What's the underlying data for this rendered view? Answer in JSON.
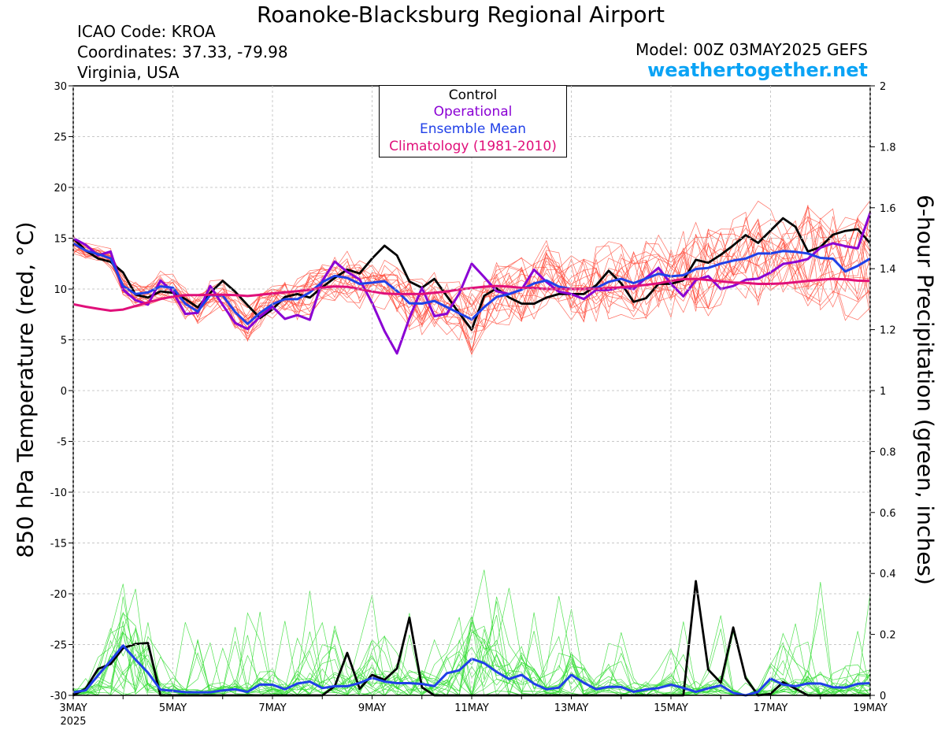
{
  "header": {
    "title": "Roanoke-Blacksburg Regional Airport",
    "icao": "ICAO Code: KROA",
    "coordinates": "Coordinates: 37.33, -79.98",
    "region": "Virginia, USA",
    "model": "Model: 00Z 03MAY2025 GEFS",
    "site": "weathertogether.net"
  },
  "legend": {
    "control": "Control",
    "operational": "Operational",
    "mean": "Ensemble Mean",
    "climatology": "Climatology (1981-2010)"
  },
  "colors": {
    "control": "#000000",
    "operational": "#8a00d4",
    "mean": "#2040e8",
    "climatology": "#e0107a",
    "members_temp": "#ff4a3a",
    "members_precip": "#33dd33",
    "site": "#0aa3f5"
  },
  "chart_data": {
    "type": "line",
    "title": "Roanoke-Blacksburg Regional Airport",
    "ylabel": "850 hPa Temperature (red, °C)",
    "y2label": "6-hour Precipitation (green, inches)",
    "xlim": [
      "2025-05-03",
      "2025-05-19"
    ],
    "ylim": [
      -30,
      30
    ],
    "y2lim": [
      0,
      2
    ],
    "x_ticks": [
      {
        "day": 3,
        "label": "3MAY",
        "sub": "2025"
      },
      {
        "day": 5,
        "label": "5MAY",
        "sub": ""
      },
      {
        "day": 7,
        "label": "7MAY",
        "sub": ""
      },
      {
        "day": 9,
        "label": "9MAY",
        "sub": ""
      },
      {
        "day": 11,
        "label": "11MAY",
        "sub": ""
      },
      {
        "day": 13,
        "label": "13MAY",
        "sub": ""
      },
      {
        "day": 15,
        "label": "15MAY",
        "sub": ""
      },
      {
        "day": 17,
        "label": "17MAY",
        "sub": ""
      },
      {
        "day": 19,
        "label": "19MAY",
        "sub": ""
      }
    ],
    "y_ticks": [
      30,
      25,
      20,
      15,
      10,
      5,
      0,
      -5,
      -10,
      -15,
      -20,
      -25,
      -30
    ],
    "y2_ticks": [
      2,
      1.8,
      1.6,
      1.4,
      1.2,
      1,
      0.8,
      0.6,
      0.4,
      0.2,
      0
    ],
    "x_step_hours": 6,
    "series": [
      {
        "name": "Control",
        "axis": "temp",
        "values": [
          15,
          14,
          13,
          13,
          12.5,
          11.5,
          9.5,
          9,
          9.5,
          10,
          9.5,
          9,
          8,
          9,
          10.5,
          11,
          9.5,
          8.5,
          7,
          7.5,
          8.5,
          9.5,
          9.5,
          9,
          10,
          10.5,
          11.5,
          12,
          11.5,
          12.5,
          14.5,
          14,
          13,
          10.5,
          10,
          11,
          11,
          8,
          7.5,
          6,
          9,
          10.5,
          9.5,
          9,
          8.5,
          8.5,
          9,
          9.5,
          9.5,
          9.5,
          9.5,
          10,
          12,
          11.5,
          10,
          8.5,
          9,
          10.5,
          10.5,
          10.5,
          11,
          13,
          12.5,
          13,
          14,
          14.5,
          15.5,
          14.5,
          15.5,
          16.5,
          17.5,
          15.5,
          13.5,
          14,
          15,
          16,
          15.5,
          16,
          14.5
        ]
      },
      {
        "name": "Operational",
        "axis": "temp",
        "values": [
          15,
          15,
          12,
          15,
          13,
          9.5,
          9,
          8,
          9.5,
          12,
          9,
          7.5,
          7,
          10.5,
          10,
          7.5,
          6.5,
          6,
          7,
          8,
          8.5,
          6.5,
          7.5,
          6.5,
          9.5,
          13,
          12.5,
          11.5,
          11,
          9,
          7.5,
          4,
          3.5,
          7.5,
          10.5,
          7.5,
          7,
          8,
          10,
          12.5,
          11.5,
          10,
          9.5,
          9.5,
          10,
          12,
          11,
          10,
          9.5,
          9.5,
          9,
          10,
          9.5,
          10.5,
          10,
          10,
          11,
          12.5,
          11,
          10,
          9,
          11,
          11.5,
          10,
          10,
          10.5,
          11,
          11,
          11.5,
          12,
          13,
          12.5,
          13,
          14,
          14.5,
          14.5,
          14,
          14,
          17.5
        ]
      },
      {
        "name": "Ensemble Mean",
        "axis": "temp",
        "values": [
          14.5,
          14,
          13,
          14,
          12.5,
          10,
          9.5,
          9.5,
          10,
          10.5,
          10,
          8.5,
          7.5,
          9,
          10,
          9,
          7.5,
          6.5,
          7.5,
          8,
          9,
          9,
          9,
          9.5,
          10.5,
          11,
          11.5,
          11,
          10.5,
          10.5,
          11,
          10.5,
          9.5,
          8.5,
          8.5,
          9,
          8.5,
          8,
          7.5,
          7,
          8,
          9,
          9.5,
          9.5,
          10,
          10.5,
          11,
          10.5,
          10,
          10,
          10,
          10,
          10.5,
          11,
          11,
          10.5,
          11,
          11.5,
          11.5,
          11,
          11.5,
          12,
          12,
          12.5,
          12.5,
          13,
          13,
          13.5,
          13.5,
          13.5,
          14,
          13.5,
          13.5,
          13,
          13.5,
          12,
          11.5,
          12.5,
          13
        ]
      },
      {
        "name": "Climatology (1981-2010)",
        "axis": "temp",
        "smooth": true,
        "values": [
          8.5,
          8.3,
          8.1,
          8,
          7.8,
          8,
          8.3,
          8.6,
          8.9,
          9.1,
          9.3,
          9.4,
          9.4,
          9.4,
          9.5,
          9.4,
          9.4,
          9.3,
          9.4,
          9.5,
          9.6,
          9.7,
          9.8,
          9.9,
          10.1,
          10.2,
          10.3,
          10.2,
          10.0,
          9.8,
          9.6,
          9.5,
          9.5,
          9.5,
          9.5,
          9.6,
          9.7,
          9.8,
          10.0,
          10.1,
          10.2,
          10.3,
          10.3,
          10.2,
          10.1,
          10.1,
          10.0,
          10.0,
          10.0,
          10.0,
          10.0,
          10.0,
          10.1,
          10.1,
          10.2,
          10.3,
          10.4,
          10.5,
          10.7,
          10.9,
          11.0,
          11.0,
          10.9,
          10.8,
          10.7,
          10.6,
          10.6,
          10.5,
          10.5,
          10.5,
          10.6,
          10.7,
          10.8,
          10.9,
          11.0,
          11.0,
          10.9,
          10.8,
          10.8
        ]
      },
      {
        "name": "Control",
        "axis": "precip",
        "values": [
          0,
          0,
          0.1,
          0.07,
          0.12,
          0.16,
          0.16,
          0.25,
          0,
          0,
          0,
          0,
          0,
          0,
          0,
          0,
          0,
          0,
          0,
          0,
          0,
          0,
          0,
          0,
          0,
          0,
          0.05,
          0.16,
          0.02,
          0.07,
          0.06,
          0.04,
          0.11,
          0.27,
          0.03,
          0,
          0,
          0,
          0,
          0,
          0,
          0,
          0,
          0,
          0,
          0,
          0,
          0,
          0,
          0,
          0,
          0,
          0,
          0,
          0,
          0,
          0,
          0,
          0,
          0,
          0,
          0.4,
          0.1,
          0,
          0.11,
          0.3,
          0,
          0,
          0,
          0.02,
          0.07,
          0,
          0,
          0,
          0,
          0,
          0,
          0,
          0
        ]
      },
      {
        "name": "Ensemble Mean",
        "axis": "precip",
        "values": [
          0.01,
          0.01,
          0.04,
          0.1,
          0.12,
          0.17,
          0.12,
          0.09,
          0.04,
          0,
          0.02,
          0.01,
          0.01,
          0.01,
          0.01,
          0.02,
          0.02,
          0.01,
          0.03,
          0.05,
          0.02,
          0.02,
          0.04,
          0.05,
          0.02,
          0.03,
          0.03,
          0.03,
          0.04,
          0.06,
          0.05,
          0.04,
          0.04,
          0.04,
          0.04,
          0.02,
          0.05,
          0.09,
          0.08,
          0.12,
          0.11,
          0.09,
          0.06,
          0.05,
          0.07,
          0.04,
          0.02,
          0.02,
          0.03,
          0.08,
          0.04,
          0.02,
          0.02,
          0.04,
          0.02,
          0.01,
          0.02,
          0.01,
          0.06,
          0.01,
          0.03,
          0.01,
          0.02,
          0.04,
          0.02,
          0,
          0,
          0.01,
          0.06,
          0.04,
          0.03,
          0.03,
          0.04,
          0.04,
          0.03,
          0.02,
          0.03,
          0.04,
          0.04
        ]
      }
    ]
  }
}
